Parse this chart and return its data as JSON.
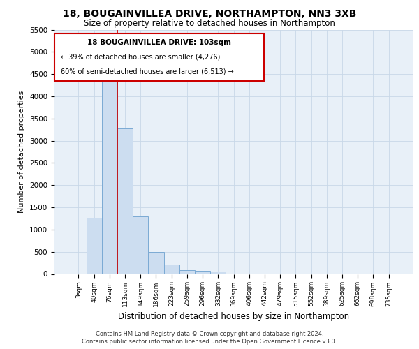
{
  "title": "18, BOUGAINVILLEA DRIVE, NORTHAMPTON, NN3 3XB",
  "subtitle": "Size of property relative to detached houses in Northampton",
  "xlabel": "Distribution of detached houses by size in Northampton",
  "ylabel": "Number of detached properties",
  "footer_line1": "Contains HM Land Registry data © Crown copyright and database right 2024.",
  "footer_line2": "Contains public sector information licensed under the Open Government Licence v3.0.",
  "bar_color": "#ccddf0",
  "bar_edgecolor": "#7baad4",
  "grid_color": "#c8d8e8",
  "bg_color": "#e8f0f8",
  "annotation_box_edgecolor": "#cc0000",
  "vline_color": "#cc0000",
  "annotation_text_line1": "18 BOUGAINVILLEA DRIVE: 103sqm",
  "annotation_text_line2": "← 39% of detached houses are smaller (4,276)",
  "annotation_text_line3": "60% of semi-detached houses are larger (6,513) →",
  "categories": [
    "3sqm",
    "40sqm",
    "76sqm",
    "113sqm",
    "149sqm",
    "186sqm",
    "223sqm",
    "259sqm",
    "296sqm",
    "332sqm",
    "369sqm",
    "406sqm",
    "442sqm",
    "479sqm",
    "515sqm",
    "552sqm",
    "589sqm",
    "625sqm",
    "662sqm",
    "698sqm",
    "735sqm"
  ],
  "values": [
    0,
    1270,
    4330,
    3270,
    1290,
    490,
    215,
    90,
    65,
    60,
    0,
    0,
    0,
    0,
    0,
    0,
    0,
    0,
    0,
    0,
    0
  ],
  "ylim": [
    0,
    5500
  ],
  "yticks": [
    0,
    500,
    1000,
    1500,
    2000,
    2500,
    3000,
    3500,
    4000,
    4500,
    5000,
    5500
  ],
  "vline_pos": 2.5,
  "figsize": [
    6.0,
    5.0
  ],
  "dpi": 100
}
